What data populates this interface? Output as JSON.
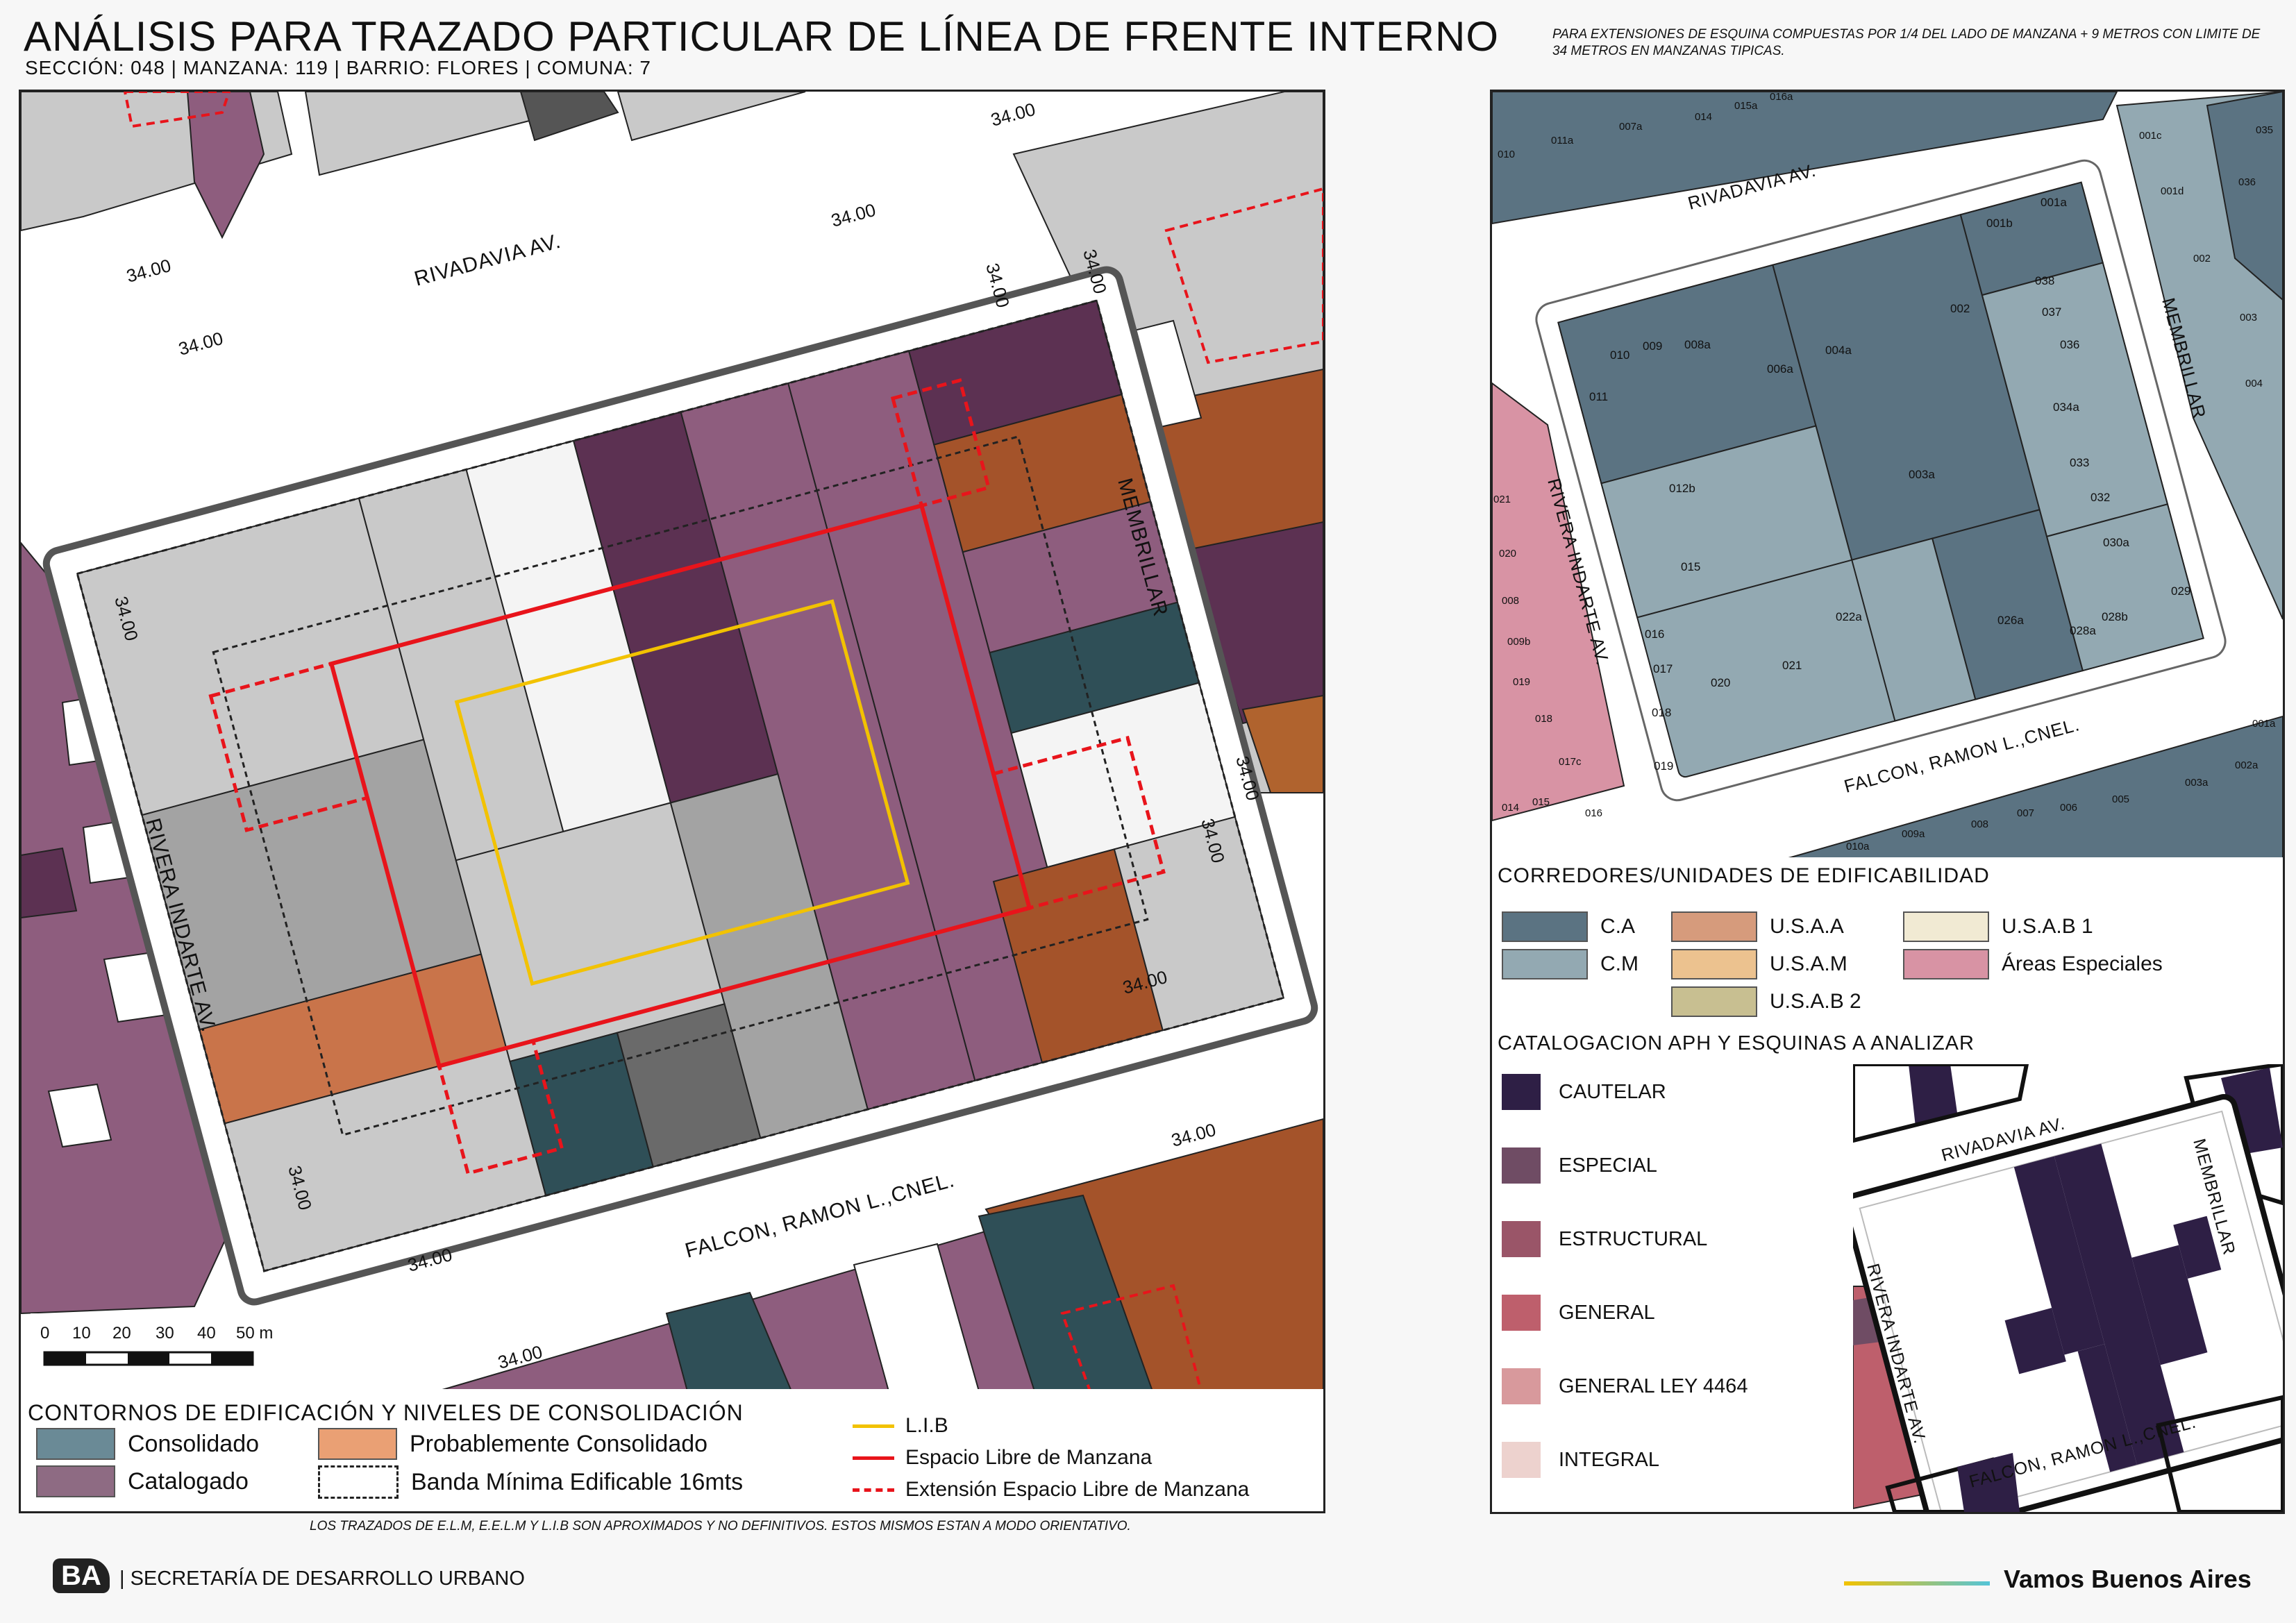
{
  "header": {
    "title": "ANÁLISIS PARA TRAZADO PARTICULAR DE LÍNEA DE FRENTE INTERNO",
    "subtitle": "SECCIÓN: 048 |  MANZANA: 119 | BARRIO: FLORES | COMUNA: 7",
    "note": "PARA EXTENSIONES DE ESQUINA COMPUESTAS POR 1/4 DEL LADO DE MANZANA + 9 METROS CON LIMITE DE 34 METROS EN MANZANAS TIPICAS."
  },
  "main_map": {
    "streets": {
      "north": "RIVADAVIA AV.",
      "east": "MEMBRILLAR",
      "south": "FALCON, RAMON L.,CNEL.",
      "west": "RIVERA INDARTE AV."
    },
    "dimension_label": "34.00",
    "scale": {
      "ticks": [
        "0",
        "10",
        "20",
        "30",
        "40",
        "50 m"
      ]
    }
  },
  "legend_main": {
    "title": "CONTORNOS DE EDIFICACIÓN Y NIVELES DE CONSOLIDACIÓN",
    "items": [
      {
        "label": "Consolidado",
        "color": "#6a8a96"
      },
      {
        "label": "Probablemente Consolidado",
        "color": "#eaa074"
      },
      {
        "label": "Catalogado",
        "color": "#8e6b83"
      },
      {
        "label": "Banda Mínima Edificable 16mts",
        "color": "#ffffff"
      }
    ],
    "lines": [
      {
        "label": "L.I.B",
        "color": "#f2c200"
      },
      {
        "label": "Espacio Libre de Manzana",
        "color": "#e8141b"
      },
      {
        "label": "Extensión Espacio Libre de Manzana",
        "color": "#e8141b"
      }
    ]
  },
  "footer": {
    "disclaimer": "LOS TRAZADOS DE E.L.M, E.E.L.M Y L.I.B SON APROXIMADOS Y NO DEFINITIVOS. ESTOS MISMOS ESTAN A MODO ORIENTATIVO.",
    "secretaria": "| SECRETARÍA DE DESARROLLO URBANO",
    "logo": "BA",
    "slogan": "Vamos Buenos Aires"
  },
  "parcel_map": {
    "streets": {
      "north": "RIVADAVIA AV.",
      "east": "MEMBRILLAR",
      "south": "FALCON, RAMON L.,CNEL.",
      "west": "RIVERA INDARTE AV."
    },
    "parcels": [
      "011",
      "010",
      "009",
      "008a",
      "006a",
      "004a",
      "002",
      "001b",
      "001a",
      "038",
      "037",
      "036",
      "034a",
      "033",
      "032",
      "030a",
      "029",
      "028b",
      "028a",
      "026a",
      "003a",
      "022a",
      "021",
      "020",
      "019",
      "018",
      "017",
      "016",
      "015",
      "012b"
    ],
    "top_row": [
      "010",
      "011a",
      "007a",
      "014",
      "015a",
      "016a"
    ],
    "right_col": [
      "001c",
      "001d",
      "035",
      "036",
      "002",
      "003",
      "004"
    ],
    "left_col": [
      "021",
      "020",
      "008",
      "009b",
      "019",
      "018",
      "017c",
      "014",
      "015",
      "016"
    ],
    "bottom_row": [
      "010a",
      "009a",
      "008",
      "007",
      "006",
      "005",
      "003a",
      "002a",
      "001a"
    ]
  },
  "legend_corridors": {
    "title": "CORREDORES/UNIDADES DE EDIFICABILIDAD",
    "items": [
      {
        "label": "C.A",
        "color": "#5b7382"
      },
      {
        "label": "C.M",
        "color": "#93a9b2"
      },
      {
        "label": "U.S.A.A",
        "color": "#d69b7c"
      },
      {
        "label": "U.S.A.M",
        "color": "#ecc28f"
      },
      {
        "label": "U.S.A.B 2",
        "color": "#c8bf91"
      },
      {
        "label": "U.S.A.B 1",
        "color": "#f1ead3"
      },
      {
        "label": "Áreas Especiales",
        "color": "#d893a4"
      }
    ]
  },
  "legend_aph": {
    "title": "CATALOGACION APH Y ESQUINAS A ANALIZAR",
    "items": [
      {
        "label": "CAUTELAR",
        "color": "#2e1f45"
      },
      {
        "label": "ESPECIAL",
        "color": "#6f4c64"
      },
      {
        "label": "ESTRUCTURAL",
        "color": "#9a5568"
      },
      {
        "label": "GENERAL",
        "color": "#be5f6c"
      },
      {
        "label": "GENERAL LEY 4464",
        "color": "#d8999c"
      },
      {
        "label": "INTEGRAL",
        "color": "#edd2ce"
      }
    ],
    "mini_streets": {
      "north": "RIVADAVIA AV.",
      "east": "MEMBRILLAR",
      "south": "FALCON, RAMON L.,CNEL.",
      "west": "RIVERA INDARTE AV."
    }
  }
}
